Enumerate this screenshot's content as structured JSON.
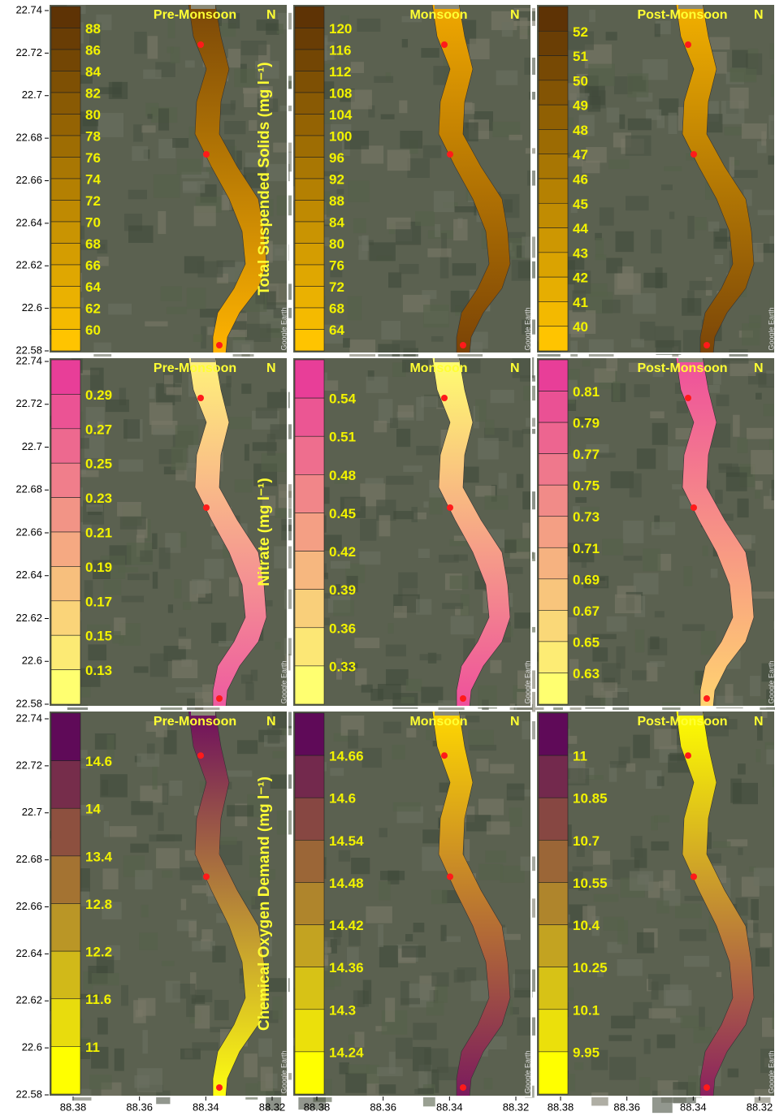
{
  "y_axis": {
    "ticks": [
      22.74,
      22.72,
      22.7,
      22.68,
      22.66,
      22.64,
      22.62,
      22.6,
      22.58
    ]
  },
  "x_axis": {
    "ticks": [
      88.38,
      88.36,
      88.34,
      88.32
    ]
  },
  "watermark": "Google Earth",
  "north": "N",
  "rows": [
    {
      "parameter": "Total Suspended Solids (mg l⁻¹)",
      "panels": [
        {
          "season": "Pre-Monsoon",
          "legend": [
            "88",
            "86",
            "84",
            "82",
            "80",
            "78",
            "76",
            "74",
            "72",
            "70",
            "68",
            "66",
            "64",
            "62",
            "60"
          ]
        },
        {
          "season": "Monsoon",
          "legend": [
            "120",
            "116",
            "112",
            "108",
            "104",
            "100",
            "96",
            "92",
            "88",
            "84",
            "80",
            "76",
            "72",
            "68",
            "64"
          ]
        },
        {
          "season": "Post-Monsoon",
          "legend": [
            "52",
            "51",
            "50",
            "49",
            "48",
            "47",
            "46",
            "45",
            "44",
            "43",
            "42",
            "41",
            "40"
          ]
        }
      ]
    },
    {
      "parameter": "Nitrate (mg l⁻¹)",
      "panels": [
        {
          "season": "Pre-Monsoon",
          "legend": [
            "0.29",
            "0.27",
            "0.25",
            "0.23",
            "0.21",
            "0.19",
            "0.17",
            "0.15",
            "0.13"
          ]
        },
        {
          "season": "Monsoon",
          "legend": [
            "0.54",
            "0.51",
            "0.48",
            "0.45",
            "0.42",
            "0.39",
            "0.36",
            "0.33"
          ]
        },
        {
          "season": "Post-Monsoon",
          "legend": [
            "0.81",
            "0.79",
            "0.77",
            "0.75",
            "0.73",
            "0.71",
            "0.69",
            "0.67",
            "0.65",
            "0.63"
          ]
        }
      ]
    },
    {
      "parameter": "Chemical Oxygen Demand (mg l⁻¹)",
      "panels": [
        {
          "season": "Pre-Monsoon",
          "legend": [
            "14.6",
            "14",
            "13.4",
            "12.8",
            "12.2",
            "11.6",
            "11"
          ]
        },
        {
          "season": "Monsoon",
          "legend": [
            "14.66",
            "14.6",
            "14.54",
            "14.48",
            "14.42",
            "14.36",
            "14.3",
            "14.24"
          ]
        },
        {
          "season": "Post-Monsoon",
          "legend": [
            "11",
            "10.85",
            "10.7",
            "10.55",
            "10.4",
            "10.25",
            "10.1",
            "9.95"
          ]
        }
      ]
    }
  ]
}
